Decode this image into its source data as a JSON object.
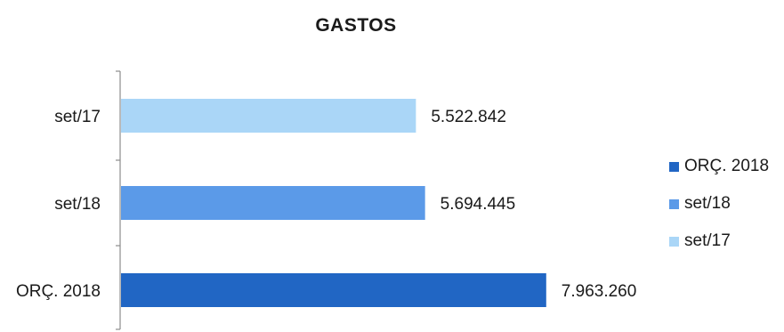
{
  "chart_data": {
    "type": "bar",
    "orientation": "horizontal",
    "title": "GASTOS",
    "categories": [
      "set/17",
      "set/18",
      "ORÇ. 2018"
    ],
    "values": [
      5522842,
      5694445,
      7963260
    ],
    "value_labels": [
      "5.522.842",
      "5.694.445",
      "7.963.260"
    ],
    "colors": [
      "#aad6f7",
      "#5b9ae8",
      "#2166c4"
    ],
    "xlim": [
      0,
      9000000
    ],
    "xlabel": "",
    "ylabel": "",
    "grid": false,
    "legend_position": "right",
    "legend": [
      {
        "label": "ORÇ. 2018",
        "color": "#2166c4"
      },
      {
        "label": "set/18",
        "color": "#5b9ae8"
      },
      {
        "label": "set/17",
        "color": "#aad6f7"
      }
    ]
  }
}
